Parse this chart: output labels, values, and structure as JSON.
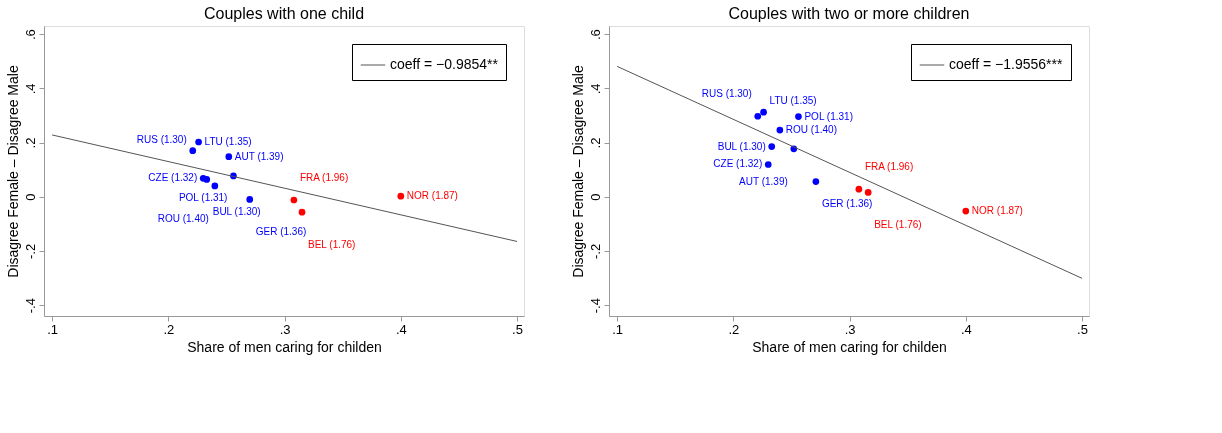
{
  "chart_data": [
    {
      "type": "scatter",
      "title": "Couples with one child",
      "xlabel": "Share of men caring for childen",
      "ylabel": "Disagree Female – Disagree Male",
      "xlim": [
        0.093,
        0.506
      ],
      "ylim": [
        -0.44,
        0.63
      ],
      "xticks": [
        {
          "value": 0.1,
          "label": ".1"
        },
        {
          "value": 0.2,
          "label": ".2"
        },
        {
          "value": 0.3,
          "label": ".3"
        },
        {
          "value": 0.4,
          "label": ".4"
        },
        {
          "value": 0.5,
          "label": ".5"
        }
      ],
      "yticks": [
        {
          "value": -0.4,
          "label": "-.4"
        },
        {
          "value": -0.2,
          "label": "-.2"
        },
        0,
        {
          "value": 0.2,
          "label": ".2"
        },
        {
          "value": 0.4,
          "label": ".4"
        },
        {
          "value": 0.6,
          "label": ".6"
        }
      ],
      "grid": false,
      "legend": "top right",
      "marker": "circle",
      "series": [
        {
          "color": "#0000ff",
          "x": [
            0.226,
            0.221,
            0.252,
            0.256,
            0.23,
            0.233,
            0.24,
            0.27
          ],
          "values": [
            0.202,
            0.17,
            0.148,
            0.077,
            0.068,
            0.064,
            0.04,
            -0.01
          ]
        },
        {
          "color": "#ff0000",
          "x": [
            0.308,
            0.315,
            0.4
          ],
          "values": [
            -0.012,
            -0.057,
            0.002
          ]
        },
        {
          "type": "line",
          "marker": "none",
          "name": "coeff = −0.9854**",
          "color": "#555555",
          "x": [
            0.1,
            0.5
          ],
          "values": [
            0.228,
            -0.165
          ]
        }
      ],
      "annotations": [
        {
          "text": "LTU (1.35)",
          "x": 0.226,
          "y": 0.202
        },
        {
          "text": "RUS (1.30)",
          "x": 0.221,
          "y": 0.17
        },
        {
          "text": "AUT (1.39)",
          "x": 0.252,
          "y": 0.148
        },
        {
          "text": "POL (1.31)",
          "x": 0.256,
          "y": 0.077
        },
        {
          "text": "CZE (1.32)",
          "x": 0.23,
          "y": 0.068
        },
        {
          "text": "BUL (1.30)",
          "x": 0.233,
          "y": 0.064
        },
        {
          "text": "ROU (1.40)",
          "x": 0.24,
          "y": 0.04
        },
        {
          "text": "GER (1.36)",
          "x": 0.27,
          "y": -0.01
        },
        {
          "text": "FRA (1.96)",
          "x": 0.308,
          "y": -0.012
        },
        {
          "text": "BEL (1.76)",
          "x": 0.315,
          "y": -0.057
        },
        {
          "text": "NOR (1.87)",
          "x": 0.4,
          "y": 0.002
        }
      ]
    },
    {
      "type": "scatter",
      "title": "Couples with two or more children",
      "xlabel": "Share of men caring for childen",
      "ylabel": "Disagree Female – Disagree Male",
      "xlim": [
        0.093,
        0.506
      ],
      "ylim": [
        -0.44,
        0.63
      ],
      "xticks": [
        {
          "value": 0.1,
          "label": ".1"
        },
        {
          "value": 0.2,
          "label": ".2"
        },
        {
          "value": 0.3,
          "label": ".3"
        },
        {
          "value": 0.4,
          "label": ".4"
        },
        {
          "value": 0.5,
          "label": ".5"
        }
      ],
      "yticks": [
        {
          "value": -0.4,
          "label": "-.4"
        },
        {
          "value": -0.2,
          "label": "-.2"
        },
        0,
        {
          "value": 0.2,
          "label": ".2"
        },
        {
          "value": 0.4,
          "label": ".4"
        },
        {
          "value": 0.6,
          "label": ".6"
        }
      ],
      "grid": false,
      "legend": "top right",
      "marker": "circle",
      "series": [
        {
          "color": "#0000ff",
          "x": [
            0.226,
            0.221,
            0.256,
            0.24,
            0.233,
            0.252,
            0.23,
            0.271
          ],
          "values": [
            0.312,
            0.297,
            0.296,
            0.246,
            0.185,
            0.177,
            0.119,
            0.056
          ]
        },
        {
          "color": "#ff0000",
          "x": [
            0.308,
            0.316,
            0.4
          ],
          "values": [
            0.028,
            0.016,
            -0.053
          ]
        },
        {
          "type": "line",
          "marker": "none",
          "name": "coeff = −1.9556***",
          "color": "#555555",
          "x": [
            0.1,
            0.5
          ],
          "values": [
            0.481,
            -0.301
          ]
        }
      ],
      "annotations": [
        {
          "text": "LTU (1.35)",
          "x": 0.226,
          "y": 0.312
        },
        {
          "text": "RUS (1.30)",
          "x": 0.221,
          "y": 0.297
        },
        {
          "text": "POL (1.31)",
          "x": 0.256,
          "y": 0.296
        },
        {
          "text": "ROU (1.40)",
          "x": 0.24,
          "y": 0.246
        },
        {
          "text": "BUL (1.30)",
          "x": 0.233,
          "y": 0.185
        },
        {
          "text": "AUT (1.39)",
          "x": 0.252,
          "y": 0.177
        },
        {
          "text": "CZE (1.32)",
          "x": 0.23,
          "y": 0.119
        },
        {
          "text": "GER (1.36)",
          "x": 0.271,
          "y": 0.056
        },
        {
          "text": "FRA (1.96)",
          "x": 0.308,
          "y": 0.028
        },
        {
          "text": "BEL (1.76)",
          "x": 0.316,
          "y": 0.016
        },
        {
          "text": "NOR (1.87)",
          "x": 0.4,
          "y": -0.053
        }
      ]
    }
  ]
}
